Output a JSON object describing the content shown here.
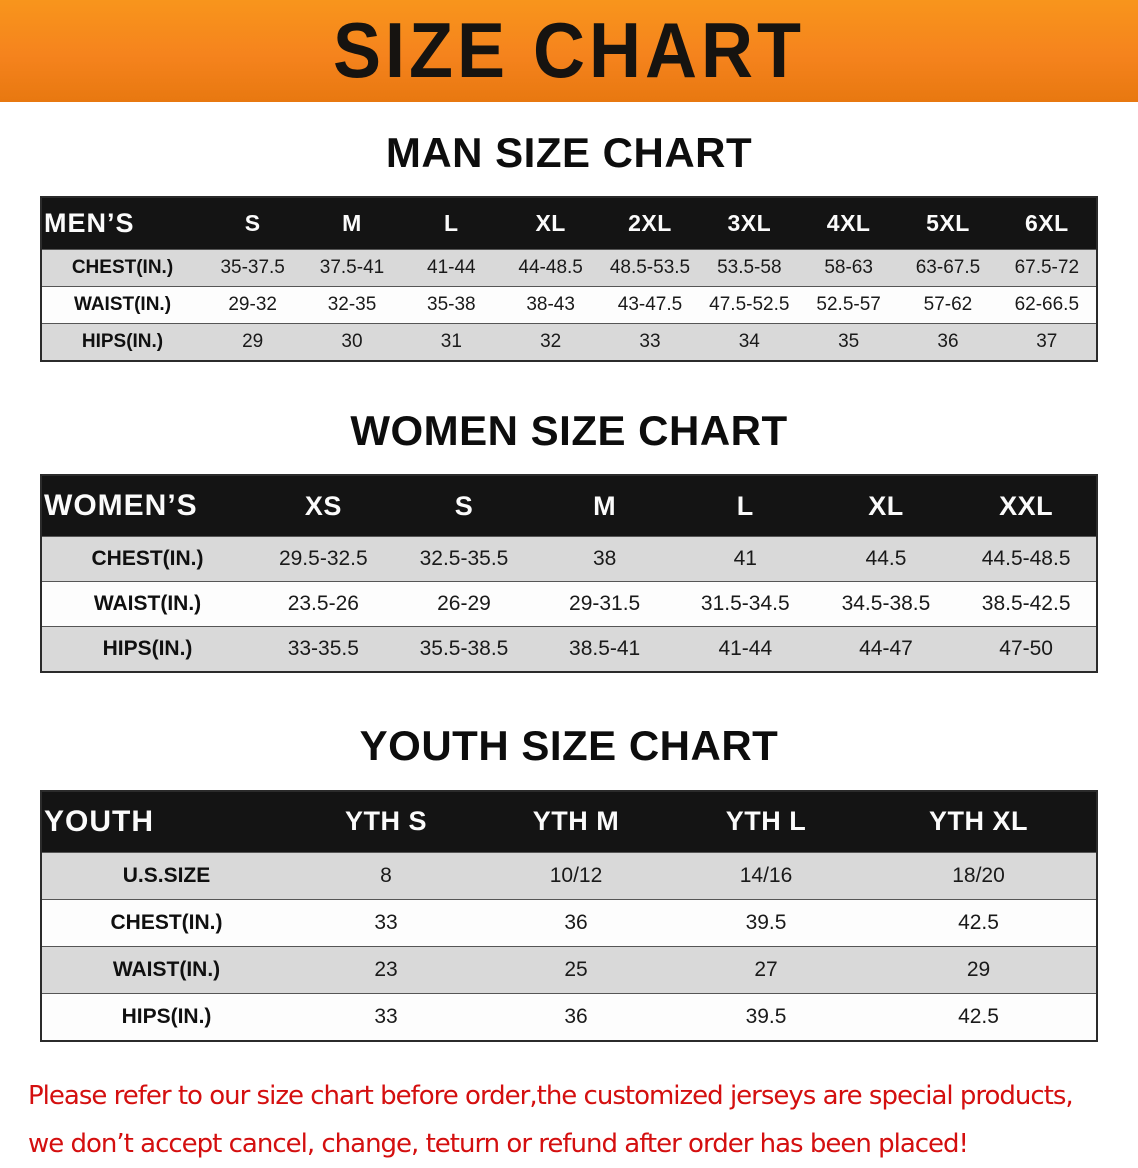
{
  "banner": {
    "title": "SIZE CHART",
    "background_color": "#f5831d",
    "text_color": "#161310"
  },
  "sections": [
    {
      "heading": "MAN SIZE CHART",
      "table": {
        "header": [
          "MEN’S",
          "S",
          "M",
          "L",
          "XL",
          "2XL",
          "3XL",
          "4XL",
          "5XL",
          "6XL"
        ],
        "rows": [
          [
            "CHEST(IN.)",
            "35-37.5",
            "37.5-41",
            "41-44",
            "44-48.5",
            "48.5-53.5",
            "53.5-58",
            "58-63",
            "63-67.5",
            "67.5-72"
          ],
          [
            "WAIST(IN.)",
            "29-32",
            "32-35",
            "35-38",
            "38-43",
            "43-47.5",
            "47.5-52.5",
            "52.5-57",
            "57-62",
            "62-66.5"
          ],
          [
            "HIPS(IN.)",
            "29",
            "30",
            "31",
            "32",
            "33",
            "34",
            "35",
            "36",
            "37"
          ]
        ]
      }
    },
    {
      "heading": "WOMEN SIZE CHART",
      "table": {
        "header": [
          "WOMEN’S",
          "XS",
          "S",
          "M",
          "L",
          "XL",
          "XXL"
        ],
        "rows": [
          [
            "CHEST(IN.)",
            "29.5-32.5",
            "32.5-35.5",
            "38",
            "41",
            "44.5",
            "44.5-48.5"
          ],
          [
            "WAIST(IN.)",
            "23.5-26",
            "26-29",
            "29-31.5",
            "31.5-34.5",
            "34.5-38.5",
            "38.5-42.5"
          ],
          [
            "HIPS(IN.)",
            "33-35.5",
            "35.5-38.5",
            "38.5-41",
            "41-44",
            "44-47",
            "47-50"
          ]
        ]
      }
    },
    {
      "heading": "YOUTH SIZE CHART",
      "table": {
        "header": [
          "YOUTH",
          "YTH S",
          "YTH M",
          "YTH L",
          "YTH XL"
        ],
        "rows": [
          [
            "U.S.SIZE",
            "8",
            "10/12",
            "14/16",
            "18/20"
          ],
          [
            "CHEST(IN.)",
            "33",
            "36",
            "39.5",
            "42.5"
          ],
          [
            "WAIST(IN.)",
            "23",
            "25",
            "27",
            "29"
          ],
          [
            "HIPS(IN.)",
            "33",
            "36",
            "39.5",
            "42.5"
          ]
        ]
      }
    }
  ],
  "disclaimer": {
    "color": "#d40f0f",
    "line1": "Please refer to our size chart before order,the customized jerseys are special products,",
    "line2": "we don’t accept cancel, change, teturn or refund after order has been placed!"
  }
}
